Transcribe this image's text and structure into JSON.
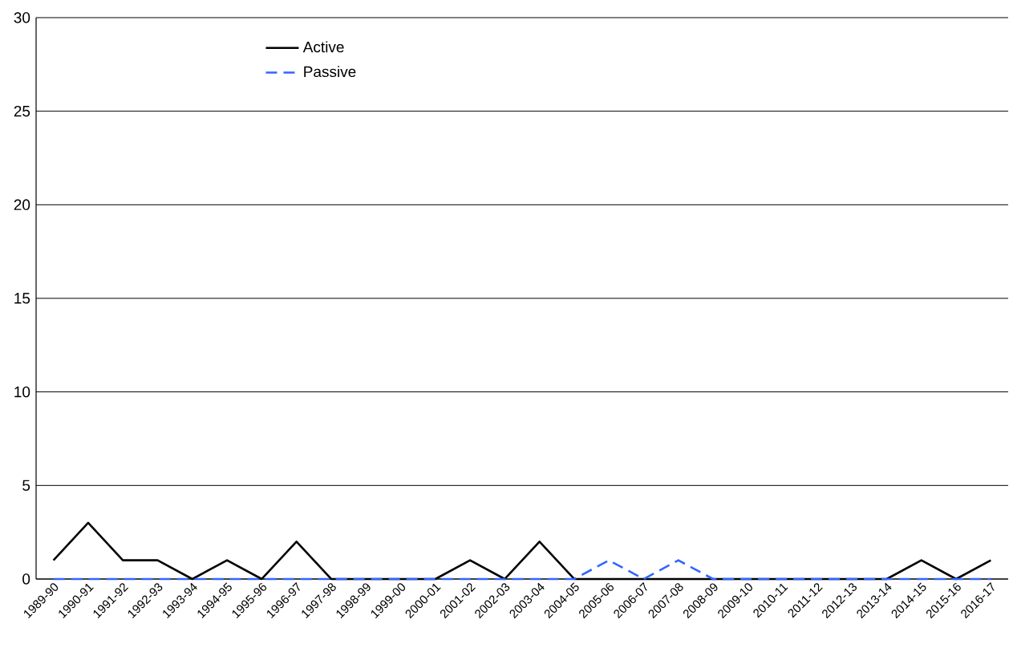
{
  "chart_data": {
    "type": "line",
    "categories": [
      "1989-90",
      "1990-91",
      "1991-92",
      "1992-93",
      "1993-94",
      "1994-95",
      "1995-96",
      "1996-97",
      "1997-98",
      "1998-99",
      "1999-00",
      "2000-01",
      "2001-02",
      "2002-03",
      "2003-04",
      "2004-05",
      "2005-06",
      "2006-07",
      "2007-08",
      "2008-09",
      "2009-10",
      "2010-11",
      "2011-12",
      "2012-13",
      "2013-14",
      "2014-15",
      "2015-16",
      "2016-17"
    ],
    "series": [
      {
        "name": "Active",
        "color": "#000000",
        "line_style": "solid",
        "values": [
          1,
          3,
          1,
          1,
          0,
          1,
          0,
          2,
          0,
          0,
          0,
          0,
          1,
          0,
          2,
          0,
          0,
          0,
          0,
          0,
          0,
          0,
          0,
          0,
          0,
          1,
          0,
          1
        ]
      },
      {
        "name": "Passive",
        "color": "#3366ff",
        "line_style": "dashed",
        "values": [
          0,
          0,
          0,
          0,
          0,
          0,
          0,
          0,
          0,
          0,
          0,
          0,
          0,
          0,
          0,
          0,
          1,
          0,
          1,
          0,
          0,
          0,
          0,
          0,
          0,
          0,
          0,
          0
        ]
      }
    ],
    "ylim": [
      0,
      30
    ],
    "yticks": [
      0,
      5,
      10,
      15,
      20,
      25,
      30
    ],
    "grid": "y",
    "legend": "top left",
    "marker": "none"
  }
}
